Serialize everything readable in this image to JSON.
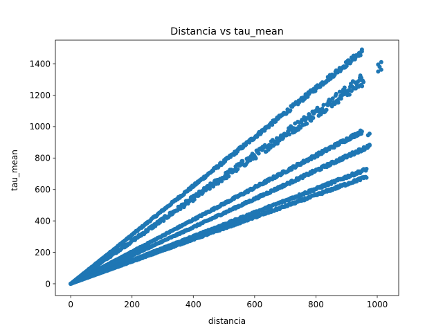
{
  "chart_data": {
    "type": "scatter",
    "title": "Distancia vs tau_mean",
    "xlabel": "distancia",
    "ylabel": "tau_mean",
    "xlim": [
      -50,
      1070
    ],
    "ylim": [
      -75,
      1550
    ],
    "xticks": [
      0,
      200,
      400,
      600,
      800,
      1000
    ],
    "yticks": [
      0,
      200,
      400,
      600,
      800,
      1000,
      1200,
      1400
    ],
    "grid": false,
    "legend": "none",
    "marker_color": "#1f77b4",
    "series": [
      {
        "bands": [
          {
            "slope": 1.555,
            "x_max": 950,
            "spread": 0.012
          },
          {
            "slope": 1.36,
            "x_max": 955,
            "spread": 0.03
          },
          {
            "slope": 1.02,
            "x_max": 950,
            "spread": 0.012
          },
          {
            "slope": 0.9,
            "x_max": 975,
            "spread": 0.012
          },
          {
            "slope": 0.755,
            "x_max": 965,
            "spread": 0.012
          },
          {
            "slope": 0.705,
            "x_max": 965,
            "spread": 0.012
          }
        ],
        "extra_points": [
          {
            "x": 950,
            "y": 1478
          },
          {
            "x": 940,
            "y": 1450
          },
          {
            "x": 945,
            "y": 1325
          },
          {
            "x": 948,
            "y": 1310
          },
          {
            "x": 1003,
            "y": 1395
          },
          {
            "x": 1013,
            "y": 1410
          },
          {
            "x": 1003,
            "y": 1350
          },
          {
            "x": 1013,
            "y": 1362
          },
          {
            "x": 1008,
            "y": 1380
          },
          {
            "x": 940,
            "y": 960
          },
          {
            "x": 948,
            "y": 955
          },
          {
            "x": 975,
            "y": 955
          },
          {
            "x": 970,
            "y": 945
          },
          {
            "x": 975,
            "y": 880
          },
          {
            "x": 968,
            "y": 878
          },
          {
            "x": 962,
            "y": 728
          },
          {
            "x": 958,
            "y": 724
          },
          {
            "x": 962,
            "y": 680
          },
          {
            "x": 955,
            "y": 678
          }
        ]
      }
    ]
  }
}
